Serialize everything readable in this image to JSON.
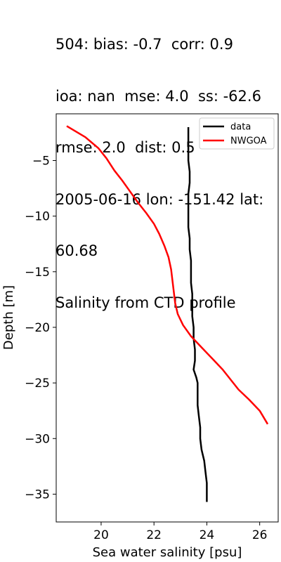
{
  "chart_data": {
    "type": "line",
    "title_lines": [
      "504: bias: -0.7  corr: 0.9",
      "ioa: nan  mse: 4.0  ss: -62.6",
      "rmse: 2.0  dist: 0.5",
      "2005-06-16 lon: -151.42 lat:",
      "60.68",
      "Salinity from CTD profile"
    ],
    "xlabel": "Sea water salinity [psu]",
    "ylabel": "Depth [m]",
    "xlim": [
      18.3,
      26.7
    ],
    "ylim": [
      -37.5,
      -0.8
    ],
    "xticks": [
      20,
      22,
      24,
      26
    ],
    "xtick_labels": [
      "20",
      "22",
      "24",
      "26"
    ],
    "yticks": [
      -5,
      -10,
      -15,
      -20,
      -25,
      -30,
      -35
    ],
    "ytick_labels": [
      "−5",
      "−10",
      "−15",
      "−20",
      "−25",
      "−30",
      "−35"
    ],
    "grid": false,
    "legend_position": "upper right",
    "series": [
      {
        "name": "data",
        "color": "#000000",
        "points": [
          [
            23.3,
            -2
          ],
          [
            23.3,
            -3
          ],
          [
            23.3,
            -4
          ],
          [
            23.3,
            -5
          ],
          [
            23.35,
            -6
          ],
          [
            23.35,
            -7
          ],
          [
            23.3,
            -8
          ],
          [
            23.3,
            -9
          ],
          [
            23.3,
            -10
          ],
          [
            23.3,
            -11
          ],
          [
            23.35,
            -12
          ],
          [
            23.35,
            -13
          ],
          [
            23.4,
            -14
          ],
          [
            23.4,
            -15
          ],
          [
            23.4,
            -16
          ],
          [
            23.45,
            -17
          ],
          [
            23.45,
            -18
          ],
          [
            23.45,
            -19
          ],
          [
            23.5,
            -20
          ],
          [
            23.5,
            -21
          ],
          [
            23.55,
            -22
          ],
          [
            23.55,
            -23
          ],
          [
            23.5,
            -23.8
          ],
          [
            23.6,
            -24.5
          ],
          [
            23.65,
            -25
          ],
          [
            23.65,
            -26
          ],
          [
            23.65,
            -27
          ],
          [
            23.7,
            -28
          ],
          [
            23.75,
            -29
          ],
          [
            23.75,
            -30
          ],
          [
            23.8,
            -31
          ],
          [
            23.9,
            -32
          ],
          [
            23.95,
            -33
          ],
          [
            24.0,
            -34
          ],
          [
            24.0,
            -35
          ],
          [
            24.0,
            -35.7
          ]
        ]
      },
      {
        "name": "NWGOA",
        "color": "#ff0000",
        "points": [
          [
            18.7,
            -1.9
          ],
          [
            19.4,
            -2.9
          ],
          [
            19.9,
            -3.9
          ],
          [
            20.2,
            -4.8
          ],
          [
            20.5,
            -5.9
          ],
          [
            20.8,
            -6.8
          ],
          [
            21.1,
            -7.8
          ],
          [
            21.4,
            -8.8
          ],
          [
            21.7,
            -9.7
          ],
          [
            22.0,
            -10.7
          ],
          [
            22.2,
            -11.6
          ],
          [
            22.4,
            -12.7
          ],
          [
            22.55,
            -13.7
          ],
          [
            22.65,
            -14.8
          ],
          [
            22.7,
            -15.8
          ],
          [
            22.75,
            -16.8
          ],
          [
            22.8,
            -17.8
          ],
          [
            22.9,
            -18.8
          ],
          [
            23.1,
            -19.8
          ],
          [
            23.4,
            -20.8
          ],
          [
            23.8,
            -21.8
          ],
          [
            24.2,
            -22.8
          ],
          [
            24.6,
            -23.8
          ],
          [
            24.9,
            -24.7
          ],
          [
            25.2,
            -25.6
          ],
          [
            25.6,
            -26.5
          ],
          [
            26.0,
            -27.5
          ],
          [
            26.3,
            -28.7
          ]
        ]
      }
    ]
  }
}
